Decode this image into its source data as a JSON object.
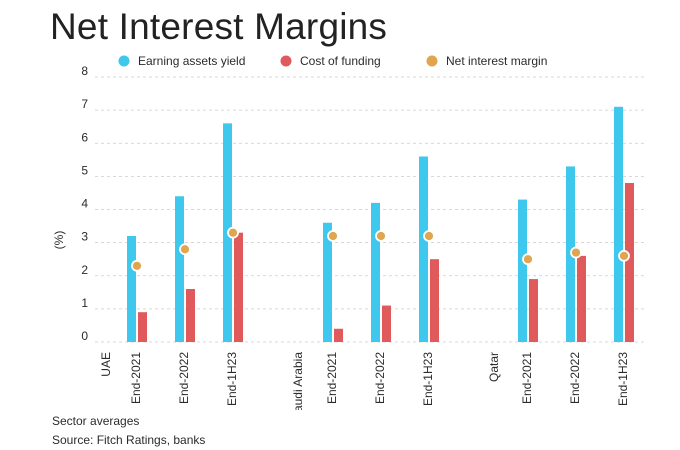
{
  "title": "Net Interest Margins",
  "footnote": {
    "line1": "Sector averages",
    "line2": "Source: Fitch Ratings, banks"
  },
  "colors": {
    "earning": "#3ec8ee",
    "cost": "#e05a5c",
    "nim": "#e0a54e",
    "grid": "#cccccc",
    "text": "#2b2b2b"
  },
  "chart_data": {
    "type": "bar",
    "ylabel": "(%)",
    "ylim": [
      0,
      8
    ],
    "yticks": [
      0,
      1,
      2,
      3,
      4,
      5,
      6,
      7,
      8
    ],
    "grid": true,
    "legend": "top",
    "groups": [
      "UAE",
      "Saudi Arabia",
      "Qatar"
    ],
    "categories": [
      "End-2021",
      "End-2022",
      "End-1H23"
    ],
    "series": [
      {
        "name": "Earning assets yield",
        "kind": "bar",
        "color": "#3ec8ee",
        "values": [
          [
            3.2,
            4.4,
            6.6
          ],
          [
            3.6,
            4.2,
            5.6
          ],
          [
            4.3,
            5.3,
            7.1
          ]
        ]
      },
      {
        "name": "Cost of funding",
        "kind": "bar",
        "color": "#e05a5c",
        "values": [
          [
            0.9,
            1.6,
            3.3
          ],
          [
            0.4,
            1.1,
            2.5
          ],
          [
            1.9,
            2.6,
            4.8
          ]
        ]
      },
      {
        "name": "Net interest margin",
        "kind": "dot",
        "color": "#e0a54e",
        "values": [
          [
            2.3,
            2.8,
            3.3
          ],
          [
            3.2,
            3.2,
            3.2
          ],
          [
            2.5,
            2.7,
            2.6
          ]
        ]
      }
    ]
  }
}
